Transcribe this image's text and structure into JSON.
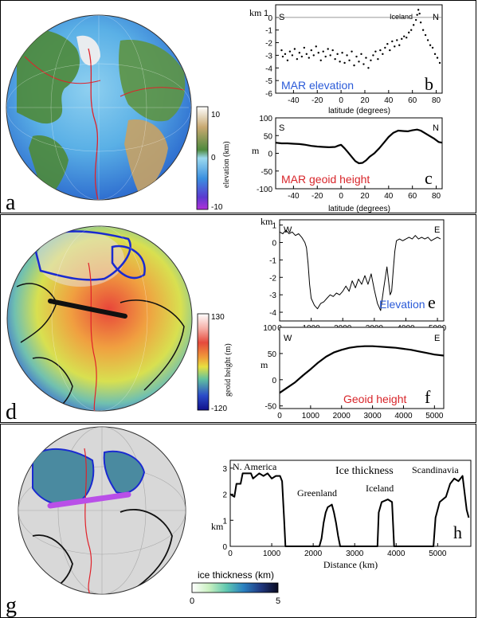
{
  "colors": {
    "blue_label": "#2a5ad8",
    "red_label": "#d8252a",
    "ridge_red": "#e0222a",
    "ice_outline_blue": "#1a2ad0",
    "purple_profile": "#b94fe8"
  },
  "panel_a": {
    "letter": "a",
    "colorbar": {
      "label": "elevation (km)",
      "max_label": "10",
      "zero_label": "0",
      "min_label": "-10"
    }
  },
  "panel_b": {
    "letter": "b",
    "unit": "km",
    "unit_tick": "1",
    "left_end": "S",
    "right_end": "N",
    "annotation": "Iceland",
    "title": "MAR elevation",
    "xlabel": "latitude (degrees)",
    "yticks": [
      "0",
      "-1",
      "-2",
      "-3",
      "-4",
      "-5",
      "-6"
    ],
    "xticks": [
      "-40",
      "-20",
      "0",
      "20",
      "40",
      "60",
      "80"
    ]
  },
  "panel_c": {
    "letter": "c",
    "unit": "m",
    "left_end": "S",
    "right_end": "N",
    "title": "MAR geoid height",
    "xlabel": "latitude (degrees)",
    "yticks": [
      "100",
      "50",
      "0",
      "-50",
      "-100"
    ],
    "xticks": [
      "-40",
      "-20",
      "0",
      "20",
      "40",
      "60",
      "80"
    ]
  },
  "panel_d": {
    "letter": "d",
    "colorbar": {
      "label": "geoid height (m)",
      "max_label": "130",
      "min_label": "-120"
    }
  },
  "panel_e": {
    "letter": "e",
    "unit": "km",
    "left_end": "W",
    "right_end": "E",
    "title": "Elevation",
    "yticks": [
      "1",
      "0",
      "-1",
      "-2",
      "-3",
      "-4"
    ],
    "xticks": [
      "0",
      "1000",
      "2000",
      "3000",
      "4000",
      "5000"
    ]
  },
  "panel_f": {
    "letter": "f",
    "unit": "m",
    "left_end": "W",
    "right_end": "E",
    "title": "Geoid height",
    "yticks": [
      "100",
      "50",
      "0",
      "-50"
    ],
    "xticks": [
      "0",
      "1000",
      "2000",
      "3000",
      "4000",
      "5000"
    ]
  },
  "panel_g": {
    "letter": "g",
    "colorbar": {
      "label": "ice thickness (km)",
      "min_label": "0",
      "max_label": "5"
    }
  },
  "panel_h": {
    "letter": "h",
    "unit": "km",
    "title": "Ice thickness",
    "region_labels": [
      "N. America",
      "Greenland",
      "Iceland",
      "Scandinavia"
    ],
    "xlabel": "Distance (km)",
    "yticks": [
      "3",
      "2",
      "1",
      "0"
    ],
    "xticks": [
      "0",
      "1000",
      "2000",
      "3000",
      "4000",
      "5000"
    ]
  },
  "chart_data": [
    {
      "id": "b",
      "type": "scatter",
      "title": "MAR elevation",
      "xlabel": "latitude (degrees)",
      "ylabel": "km",
      "xlim": [
        -55,
        85
      ],
      "ylim": [
        -6,
        1
      ],
      "points": [
        [
          -50,
          -2.6
        ],
        [
          -49,
          -3.1
        ],
        [
          -47,
          -2.9
        ],
        [
          -45,
          -3.4
        ],
        [
          -43,
          -2.7
        ],
        [
          -41,
          -3.0
        ],
        [
          -39,
          -2.5
        ],
        [
          -37,
          -3.3
        ],
        [
          -35,
          -2.8
        ],
        [
          -33,
          -3.1
        ],
        [
          -31,
          -2.4
        ],
        [
          -29,
          -2.9
        ],
        [
          -27,
          -3.2
        ],
        [
          -25,
          -2.6
        ],
        [
          -23,
          -3.0
        ],
        [
          -21,
          -2.3
        ],
        [
          -19,
          -2.8
        ],
        [
          -17,
          -3.4
        ],
        [
          -15,
          -2.7
        ],
        [
          -13,
          -3.1
        ],
        [
          -11,
          -2.5
        ],
        [
          -9,
          -3.0
        ],
        [
          -7,
          -2.6
        ],
        [
          -5,
          -3.3
        ],
        [
          -3,
          -2.9
        ],
        [
          -1,
          -3.5
        ],
        [
          1,
          -2.8
        ],
        [
          3,
          -3.6
        ],
        [
          5,
          -3.0
        ],
        [
          7,
          -3.4
        ],
        [
          9,
          -2.7
        ],
        [
          11,
          -3.8
        ],
        [
          13,
          -3.1
        ],
        [
          15,
          -3.5
        ],
        [
          17,
          -2.9
        ],
        [
          19,
          -3.7
        ],
        [
          21,
          -3.2
        ],
        [
          23,
          -4.0
        ],
        [
          25,
          -3.4
        ],
        [
          27,
          -3.0
        ],
        [
          29,
          -2.7
        ],
        [
          31,
          -3.3
        ],
        [
          33,
          -2.6
        ],
        [
          35,
          -2.9
        ],
        [
          37,
          -2.4
        ],
        [
          39,
          -2.1
        ],
        [
          41,
          -2.6
        ],
        [
          43,
          -1.9
        ],
        [
          45,
          -2.3
        ],
        [
          47,
          -1.8
        ],
        [
          49,
          -2.2
        ],
        [
          51,
          -1.7
        ],
        [
          53,
          -1.5
        ],
        [
          55,
          -1.6
        ],
        [
          57,
          -1.2
        ],
        [
          59,
          -1.0
        ],
        [
          61,
          -0.6
        ],
        [
          63,
          -0.2
        ],
        [
          64,
          0.2
        ],
        [
          65,
          0.6
        ],
        [
          66,
          0.3
        ],
        [
          67,
          -0.4
        ],
        [
          69,
          -1.0
        ],
        [
          71,
          -1.4
        ],
        [
          73,
          -1.8
        ],
        [
          75,
          -2.2
        ],
        [
          77,
          -2.4
        ],
        [
          79,
          -2.9
        ],
        [
          81,
          -3.2
        ],
        [
          83,
          -3.6
        ]
      ]
    },
    {
      "id": "c",
      "type": "line",
      "title": "MAR geoid height",
      "xlabel": "latitude (degrees)",
      "ylabel": "m",
      "xlim": [
        -55,
        85
      ],
      "ylim": [
        -100,
        100
      ],
      "points": [
        [
          -55,
          30
        ],
        [
          -50,
          28
        ],
        [
          -45,
          28
        ],
        [
          -40,
          27
        ],
        [
          -35,
          26
        ],
        [
          -30,
          24
        ],
        [
          -25,
          21
        ],
        [
          -20,
          19
        ],
        [
          -15,
          18
        ],
        [
          -10,
          17
        ],
        [
          -5,
          18
        ],
        [
          -2,
          22
        ],
        [
          0,
          24
        ],
        [
          3,
          14
        ],
        [
          6,
          2
        ],
        [
          9,
          -10
        ],
        [
          12,
          -22
        ],
        [
          15,
          -28
        ],
        [
          18,
          -27
        ],
        [
          21,
          -20
        ],
        [
          24,
          -10
        ],
        [
          28,
          0
        ],
        [
          32,
          14
        ],
        [
          36,
          30
        ],
        [
          40,
          46
        ],
        [
          44,
          58
        ],
        [
          48,
          64
        ],
        [
          52,
          63
        ],
        [
          56,
          62
        ],
        [
          60,
          65
        ],
        [
          64,
          67
        ],
        [
          67,
          64
        ],
        [
          70,
          58
        ],
        [
          74,
          50
        ],
        [
          78,
          42
        ],
        [
          82,
          32
        ],
        [
          85,
          30
        ]
      ]
    },
    {
      "id": "e",
      "type": "line",
      "title": "Elevation",
      "xlabel": "",
      "ylabel": "km",
      "xlim": [
        0,
        5200
      ],
      "ylim": [
        -4.5,
        1.3
      ],
      "points": [
        [
          0,
          0.6
        ],
        [
          100,
          0.5
        ],
        [
          200,
          0.7
        ],
        [
          300,
          0.5
        ],
        [
          400,
          0.6
        ],
        [
          500,
          0.4
        ],
        [
          600,
          0.5
        ],
        [
          700,
          0.3
        ],
        [
          800,
          0.0
        ],
        [
          850,
          -0.3
        ],
        [
          900,
          -1.2
        ],
        [
          950,
          -2.4
        ],
        [
          1000,
          -3.2
        ],
        [
          1100,
          -3.6
        ],
        [
          1200,
          -3.8
        ],
        [
          1300,
          -3.5
        ],
        [
          1400,
          -3.4
        ],
        [
          1500,
          -3.2
        ],
        [
          1600,
          -3.0
        ],
        [
          1700,
          -3.1
        ],
        [
          1800,
          -2.9
        ],
        [
          1900,
          -3.0
        ],
        [
          2000,
          -2.8
        ],
        [
          2100,
          -2.5
        ],
        [
          2200,
          -2.8
        ],
        [
          2300,
          -2.2
        ],
        [
          2400,
          -2.6
        ],
        [
          2500,
          -2.1
        ],
        [
          2600,
          -2.4
        ],
        [
          2700,
          -1.9
        ],
        [
          2800,
          -2.4
        ],
        [
          2900,
          -1.8
        ],
        [
          3000,
          -2.7
        ],
        [
          3100,
          -3.5
        ],
        [
          3200,
          -3.9
        ],
        [
          3300,
          -2.6
        ],
        [
          3400,
          -1.4
        ],
        [
          3450,
          -2.2
        ],
        [
          3500,
          -3.0
        ],
        [
          3550,
          -2.8
        ],
        [
          3600,
          -1.6
        ],
        [
          3650,
          -0.5
        ],
        [
          3700,
          0.1
        ],
        [
          3800,
          0.2
        ],
        [
          3900,
          0.1
        ],
        [
          4000,
          0.2
        ],
        [
          4100,
          0.3
        ],
        [
          4200,
          0.2
        ],
        [
          4300,
          0.4
        ],
        [
          4400,
          0.2
        ],
        [
          4500,
          0.3
        ],
        [
          4600,
          0.2
        ],
        [
          4700,
          0.3
        ],
        [
          4800,
          0.1
        ],
        [
          4900,
          0.2
        ],
        [
          5000,
          0.3
        ],
        [
          5100,
          0.2
        ]
      ]
    },
    {
      "id": "f",
      "type": "line",
      "title": "Geoid height",
      "xlabel": "",
      "ylabel": "m",
      "xlim": [
        0,
        5300
      ],
      "ylim": [
        -55,
        100
      ],
      "points": [
        [
          0,
          -25
        ],
        [
          250,
          -15
        ],
        [
          500,
          -5
        ],
        [
          750,
          8
        ],
        [
          1000,
          20
        ],
        [
          1250,
          33
        ],
        [
          1500,
          44
        ],
        [
          1750,
          52
        ],
        [
          2000,
          57
        ],
        [
          2250,
          61
        ],
        [
          2500,
          63
        ],
        [
          2750,
          64
        ],
        [
          3000,
          64
        ],
        [
          3250,
          63
        ],
        [
          3500,
          62
        ],
        [
          3750,
          61
        ],
        [
          4000,
          59
        ],
        [
          4250,
          57
        ],
        [
          4500,
          54
        ],
        [
          4750,
          51
        ],
        [
          5000,
          48
        ],
        [
          5300,
          46
        ]
      ]
    },
    {
      "id": "h",
      "type": "line",
      "title": "Ice thickness",
      "xlabel": "Distance (km)",
      "ylabel": "km",
      "xlim": [
        0,
        5800
      ],
      "ylim": [
        0,
        3.3
      ],
      "points": [
        [
          0,
          2.0
        ],
        [
          100,
          1.9
        ],
        [
          150,
          2.4
        ],
        [
          250,
          2.4
        ],
        [
          300,
          2.8
        ],
        [
          500,
          2.8
        ],
        [
          550,
          2.6
        ],
        [
          700,
          2.8
        ],
        [
          800,
          2.7
        ],
        [
          900,
          2.8
        ],
        [
          1000,
          2.6
        ],
        [
          1100,
          2.7
        ],
        [
          1200,
          2.7
        ],
        [
          1250,
          2.5
        ],
        [
          1300,
          1.0
        ],
        [
          1330,
          0.0
        ],
        [
          2150,
          0.0
        ],
        [
          2200,
          0.3
        ],
        [
          2250,
          0.9
        ],
        [
          2300,
          1.3
        ],
        [
          2350,
          1.5
        ],
        [
          2450,
          1.6
        ],
        [
          2500,
          1.3
        ],
        [
          2550,
          0.9
        ],
        [
          2600,
          0.4
        ],
        [
          2650,
          0.0
        ],
        [
          3550,
          0.0
        ],
        [
          3580,
          1.3
        ],
        [
          3650,
          1.7
        ],
        [
          3800,
          1.8
        ],
        [
          3900,
          1.7
        ],
        [
          3950,
          0.0
        ],
        [
          4900,
          0.0
        ],
        [
          4950,
          1.1
        ],
        [
          5050,
          1.7
        ],
        [
          5200,
          1.9
        ],
        [
          5300,
          2.4
        ],
        [
          5400,
          2.6
        ],
        [
          5500,
          2.5
        ],
        [
          5600,
          2.7
        ],
        [
          5700,
          1.4
        ],
        [
          5750,
          1.1
        ]
      ]
    }
  ]
}
